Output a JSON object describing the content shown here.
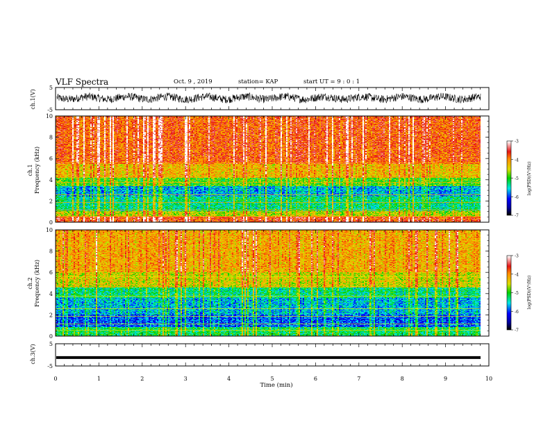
{
  "header": {
    "title": "VLF Spectra",
    "date": "Oct. 9 , 2019",
    "station": "station= KAP",
    "start_ut": "start  UT =  9 : 0  : 1"
  },
  "chart_data": [
    {
      "panel": "ch1-waveform",
      "type": "line",
      "ylabel": "ch.1(V)",
      "ylim": [
        -5,
        5
      ],
      "yticks": [
        "5",
        "-5"
      ],
      "xlim": [
        0,
        10
      ],
      "color": "#000000",
      "description_values": {
        "mean": 0.3,
        "amplitude": 1.8
      }
    },
    {
      "panel": "ch1-spectrogram",
      "type": "heatmap",
      "ylabel": "ch.1\nFrequency (kHz)",
      "ylabel_line1": "ch.1",
      "ylabel_line2": "Frequency (kHz)",
      "ylim": [
        0,
        10
      ],
      "yticks": [
        "0",
        "2",
        "4",
        "6",
        "8",
        "10"
      ],
      "xlim": [
        0,
        9.8
      ],
      "colorbar": {
        "label": "log(PSD)(V²/Hz)",
        "range": [
          -7,
          -3
        ],
        "ticks": [
          "-3",
          "-4",
          "-5",
          "-6",
          "-7"
        ]
      }
    },
    {
      "panel": "ch2-spectrogram",
      "type": "heatmap",
      "ylabel": "ch.2\nFrequency (kHz)",
      "ylabel_line1": "ch.2",
      "ylabel_line2": "Frequency (kHz)",
      "ylim": [
        0,
        10
      ],
      "yticks": [
        "0",
        "2",
        "4",
        "6",
        "8",
        "10"
      ],
      "xlim": [
        0,
        9.8
      ],
      "colorbar": {
        "label": "log(PSD)(V²/Hz)",
        "range": [
          -7,
          -3
        ],
        "ticks": [
          "-3",
          "-4",
          "-5",
          "-6",
          "-7"
        ]
      }
    },
    {
      "panel": "ch3-waveform",
      "type": "line",
      "ylabel": "ch.3(V)",
      "ylim": [
        -5,
        5
      ],
      "yticks": [
        "5",
        "-5"
      ],
      "xlim": [
        0,
        10
      ],
      "color": "#000000",
      "constant_value": -1.2
    }
  ],
  "x_axis": {
    "label": "Time (min)",
    "range": [
      0,
      10
    ],
    "ticks": [
      "0",
      "1",
      "2",
      "3",
      "4",
      "5",
      "6",
      "7",
      "8",
      "9",
      "10"
    ]
  }
}
